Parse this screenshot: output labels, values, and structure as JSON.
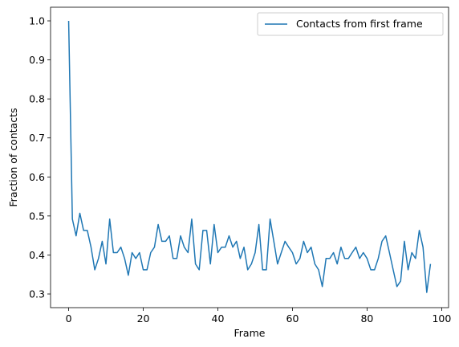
{
  "chart_data": {
    "type": "line",
    "title": "",
    "xlabel": "Frame",
    "ylabel": "Fraction of contacts",
    "xlim": [
      -4.85,
      101.85
    ],
    "ylim": [
      0.265,
      1.035
    ],
    "xticks": [
      0,
      20,
      40,
      60,
      80,
      100
    ],
    "yticks": [
      0.3,
      0.4,
      0.5,
      0.6,
      0.7,
      0.8,
      0.9,
      1.0
    ],
    "xtick_labels": [
      "0",
      "20",
      "40",
      "60",
      "80",
      "100"
    ],
    "ytick_labels": [
      "0.3",
      "0.4",
      "0.5",
      "0.6",
      "0.7",
      "0.8",
      "0.9",
      "1.0"
    ],
    "grid": false,
    "legend": "upper right",
    "series": [
      {
        "name": "Contacts from first frame",
        "color": "#1f77b4",
        "x": [
          0,
          1,
          2,
          3,
          4,
          5,
          6,
          7,
          8,
          9,
          10,
          11,
          12,
          13,
          14,
          15,
          16,
          17,
          18,
          19,
          20,
          21,
          22,
          23,
          24,
          25,
          26,
          27,
          28,
          29,
          30,
          31,
          32,
          33,
          34,
          35,
          36,
          37,
          38,
          39,
          40,
          41,
          42,
          43,
          44,
          45,
          46,
          47,
          48,
          49,
          50,
          51,
          52,
          53,
          54,
          55,
          56,
          57,
          58,
          59,
          60,
          61,
          62,
          63,
          64,
          65,
          66,
          67,
          68,
          69,
          70,
          71,
          72,
          73,
          74,
          75,
          76,
          77,
          78,
          79,
          80,
          81,
          82,
          83,
          84,
          85,
          86,
          87,
          88,
          89,
          90,
          91,
          92,
          93,
          94,
          95,
          96,
          97
        ],
        "y": [
          1.0,
          0.492,
          0.449,
          0.507,
          0.463,
          0.463,
          0.42,
          0.362,
          0.391,
          0.435,
          0.377,
          0.492,
          0.406,
          0.406,
          0.42,
          0.391,
          0.348,
          0.406,
          0.391,
          0.406,
          0.362,
          0.362,
          0.406,
          0.42,
          0.478,
          0.435,
          0.435,
          0.449,
          0.391,
          0.391,
          0.449,
          0.42,
          0.406,
          0.492,
          0.377,
          0.362,
          0.463,
          0.463,
          0.377,
          0.478,
          0.406,
          0.42,
          0.42,
          0.449,
          0.42,
          0.435,
          0.391,
          0.42,
          0.362,
          0.377,
          0.406,
          0.478,
          0.362,
          0.362,
          0.492,
          0.435,
          0.377,
          0.406,
          0.435,
          0.42,
          0.406,
          0.377,
          0.391,
          0.435,
          0.406,
          0.42,
          0.377,
          0.362,
          0.319,
          0.391,
          0.391,
          0.406,
          0.377,
          0.42,
          0.391,
          0.391,
          0.406,
          0.42,
          0.391,
          0.406,
          0.391,
          0.362,
          0.362,
          0.391,
          0.435,
          0.449,
          0.406,
          0.362,
          0.319,
          0.333,
          0.435,
          0.362,
          0.406,
          0.391,
          0.463,
          0.42,
          0.304,
          0.377
        ]
      }
    ]
  }
}
